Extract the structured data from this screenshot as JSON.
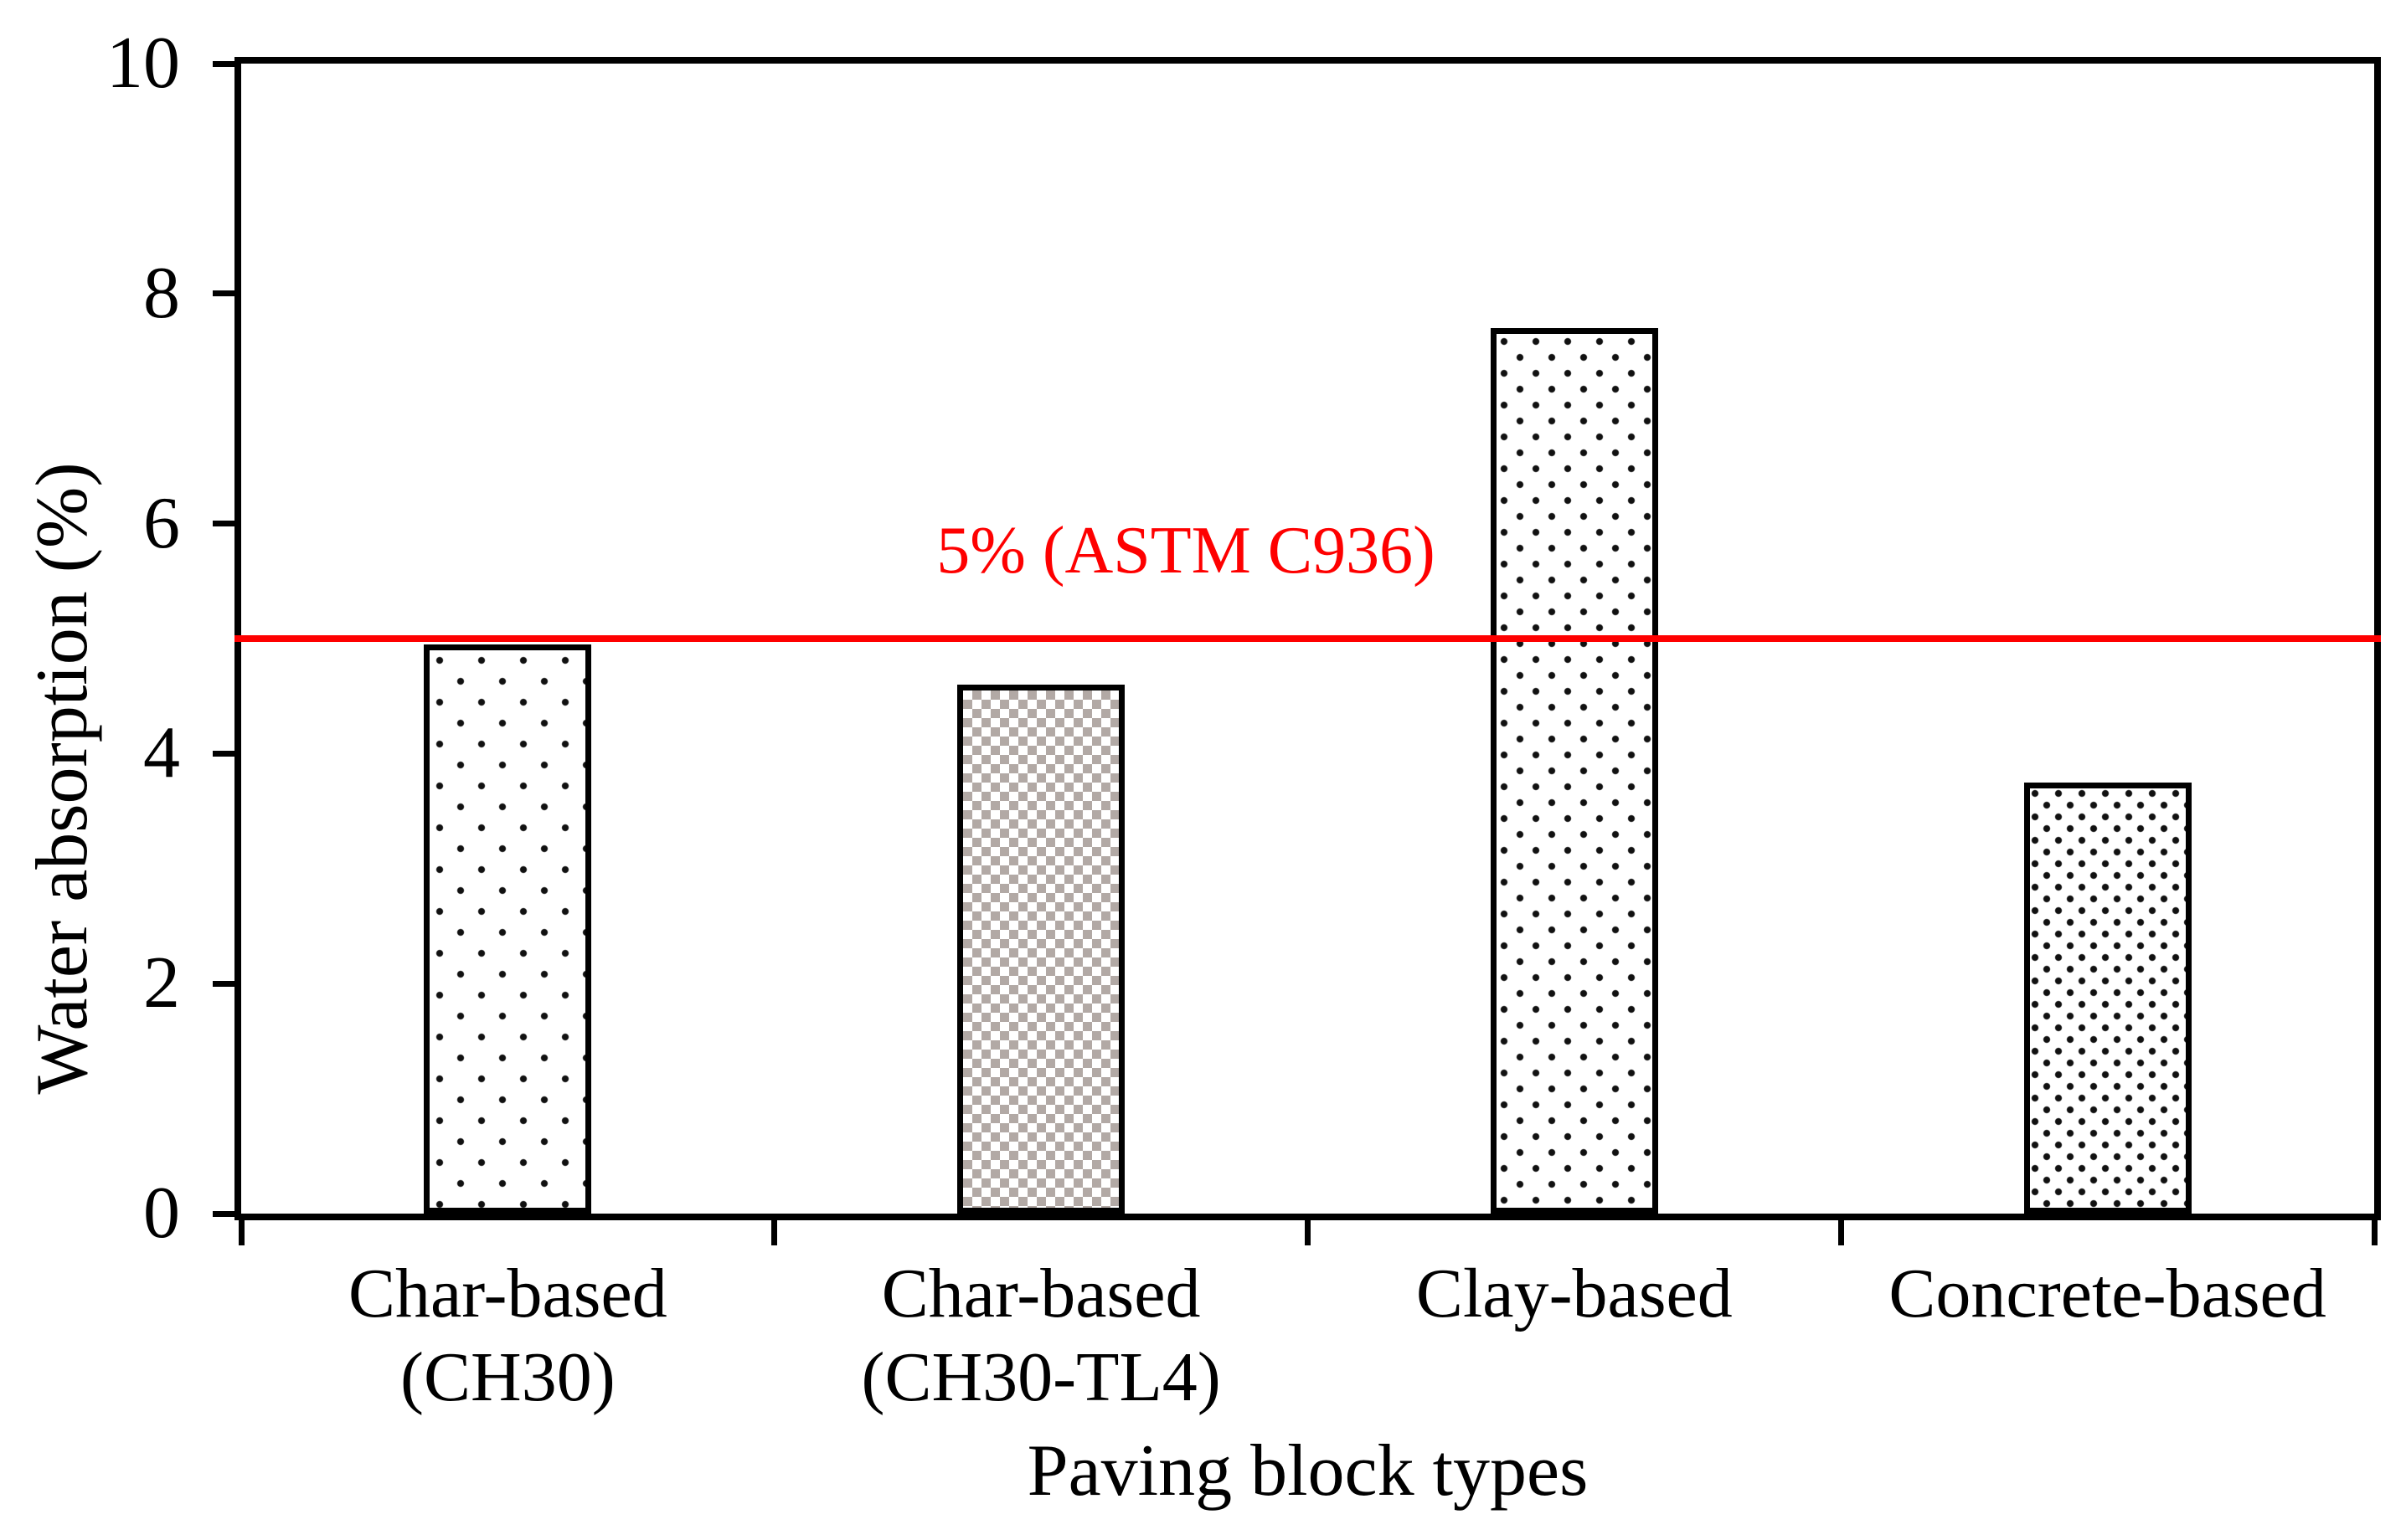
{
  "figure": {
    "background": "#ffffff"
  },
  "colors": {
    "axis_black": "#000000",
    "reference_red": "#fe0000",
    "checker_gray": "#b2a9a5",
    "dot_black": "#111111"
  },
  "chart_data": {
    "type": "bar",
    "title": "",
    "xlabel": "Paving block types",
    "ylabel": "Water absorption (%)",
    "categories": [
      "Char-based (CH30)",
      "Char-based (CH30-TL4)",
      "Clay-based",
      "Concrete-based"
    ],
    "category_label_lines": [
      [
        "Char-based",
        "(CH30)"
      ],
      [
        "Char-based",
        "(CH30-TL4)"
      ],
      [
        "Clay-based"
      ],
      [
        "Concrete-based"
      ]
    ],
    "values": [
      4.95,
      4.6,
      7.7,
      3.75
    ],
    "bar_patterns": [
      "sparse-dots",
      "gray-checker",
      "medium-dots",
      "dense-dots"
    ],
    "ylim": [
      0,
      10
    ],
    "ytick_step": 2,
    "ytick_labels": [
      "0",
      "2",
      "4",
      "6",
      "8",
      "10"
    ],
    "grid": false,
    "legend": "none",
    "frame": "full-box",
    "reference_line": {
      "value": 5,
      "color": "#fe0000",
      "label": "5% (ASTM C936)"
    },
    "annotation": {
      "text": "5% (ASTM C936)",
      "color": "#fe0000"
    }
  }
}
